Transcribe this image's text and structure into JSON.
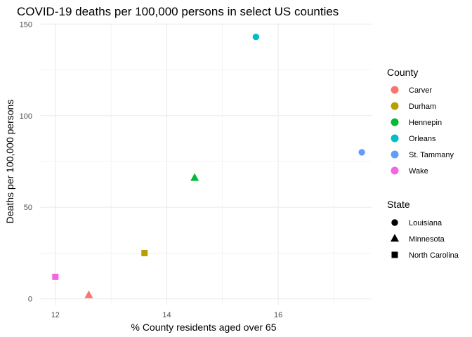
{
  "chart_data": {
    "type": "scatter",
    "title": "COVID-19 deaths per 100,000 persons in select US counties",
    "xlabel": "% County residents aged over 65",
    "ylabel": "Deaths per 100,000 persons",
    "xlim": [
      11.725,
      17.675
    ],
    "ylim": [
      -3.2,
      150.5
    ],
    "x_ticks": [
      12,
      14,
      16
    ],
    "y_ticks": [
      0,
      50,
      100,
      150
    ],
    "grid": true,
    "legend_placement": "right",
    "legends": [
      {
        "title": "County",
        "entries": [
          {
            "label": "Carver",
            "color": "#F8766D"
          },
          {
            "label": "Durham",
            "color": "#B79F00"
          },
          {
            "label": "Hennepin",
            "color": "#00BA38"
          },
          {
            "label": "Orleans",
            "color": "#00BFC4"
          },
          {
            "label": "St. Tammany",
            "color": "#619CFF"
          },
          {
            "label": "Wake",
            "color": "#F564E3"
          }
        ]
      },
      {
        "title": "State",
        "entries": [
          {
            "label": "Louisiana",
            "shape": "circle"
          },
          {
            "label": "Minnesota",
            "shape": "triangle"
          },
          {
            "label": "North Carolina",
            "shape": "square"
          }
        ]
      }
    ],
    "points": [
      {
        "county": "Carver",
        "state": "Minnesota",
        "x": 12.6,
        "y": 2
      },
      {
        "county": "Durham",
        "state": "North Carolina",
        "x": 13.6,
        "y": 25
      },
      {
        "county": "Hennepin",
        "state": "Minnesota",
        "x": 14.5,
        "y": 66
      },
      {
        "county": "Orleans",
        "state": "Louisiana",
        "x": 15.6,
        "y": 143
      },
      {
        "county": "St. Tammany",
        "state": "Louisiana",
        "x": 17.5,
        "y": 80
      },
      {
        "county": "Wake",
        "state": "North Carolina",
        "x": 12.0,
        "y": 12
      }
    ]
  }
}
